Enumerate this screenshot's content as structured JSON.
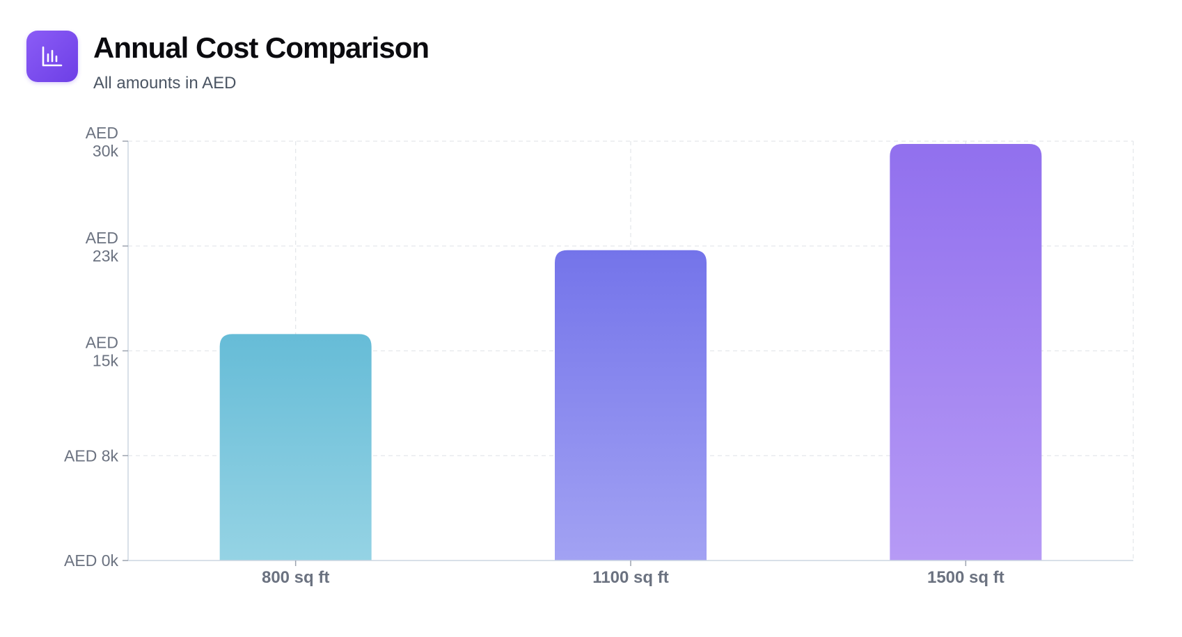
{
  "header": {
    "icon": "bar-chart-icon",
    "title": "Annual Cost Comparison",
    "subtitle": "All amounts in AED"
  },
  "chart_data": {
    "type": "bar",
    "categories": [
      "800 sq ft",
      "1100 sq ft",
      "1500 sq ft"
    ],
    "values": [
      16200,
      22200,
      29800
    ],
    "ylim": [
      0,
      30000
    ],
    "yticks": [
      {
        "value": 0,
        "lines": [
          "AED 0k"
        ]
      },
      {
        "value": 7500,
        "lines": [
          "AED 8k"
        ]
      },
      {
        "value": 15000,
        "lines": [
          "AED",
          "15k"
        ]
      },
      {
        "value": 22500,
        "lines": [
          "AED",
          "23k"
        ]
      },
      {
        "value": 30000,
        "lines": [
          "AED",
          "30k"
        ]
      }
    ],
    "grid": true,
    "bar_gradients": [
      {
        "top": "#66bcd7",
        "bottom": "#95d3e4"
      },
      {
        "top": "#7474ea",
        "bottom": "#a2a2f3"
      },
      {
        "top": "#9170ee",
        "bottom": "#b69af5"
      }
    ],
    "axis_color": "#cbd5e1",
    "grid_color": "#e5e7eb"
  }
}
